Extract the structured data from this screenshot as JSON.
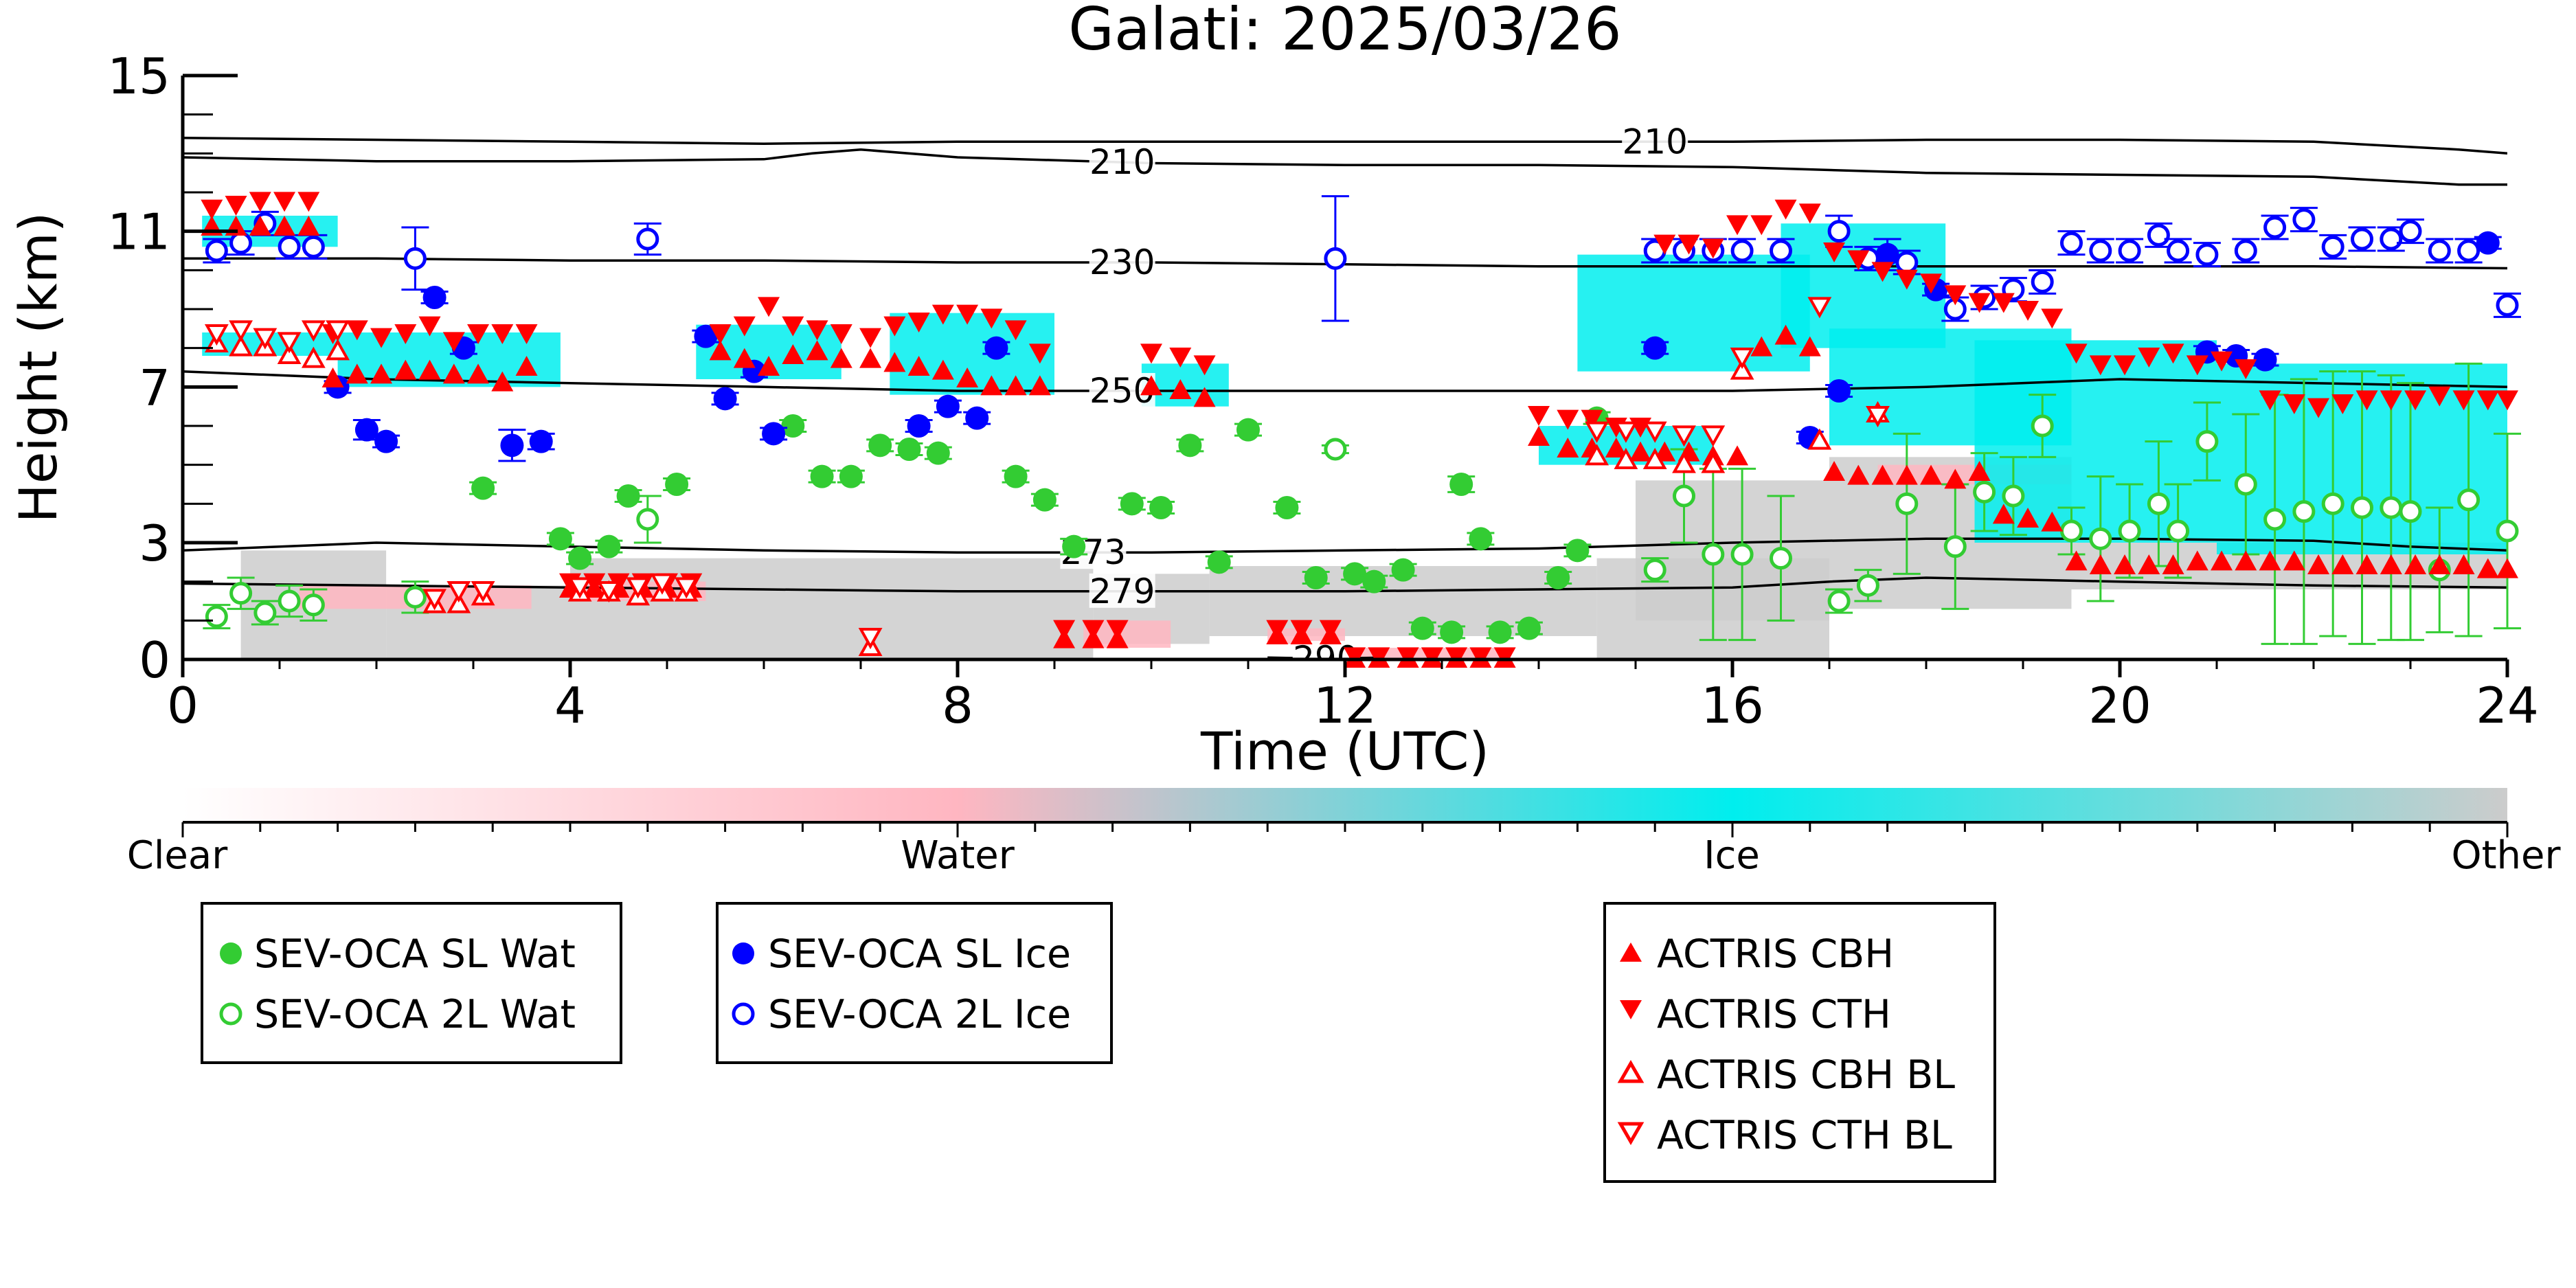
{
  "chart_data": {
    "type": "scatter",
    "title": "Galati: 2025/03/26",
    "xlabel": "Time (UTC)",
    "ylabel": "Height (km)",
    "xlim": [
      0,
      24
    ],
    "ylim": [
      0,
      15
    ],
    "xticks": [
      0,
      4,
      8,
      12,
      16,
      20,
      24
    ],
    "yticks": [
      0,
      3,
      7,
      11,
      15
    ],
    "grid": false,
    "colorbar": {
      "labels": [
        "Clear",
        "Water",
        "Ice",
        "Other"
      ],
      "colors": [
        "#ffffff",
        "#ffb6c1",
        "#00eeee",
        "#cccccc"
      ]
    },
    "contours": [
      {
        "label": "210",
        "x": [
          0,
          2,
          4,
          6,
          8,
          10,
          12,
          14,
          16,
          18,
          20,
          22,
          23.5,
          24
        ],
        "y": [
          13.4,
          13.35,
          13.3,
          13.25,
          13.3,
          13.3,
          13.3,
          13.3,
          13.3,
          13.35,
          13.35,
          13.3,
          13.1,
          13.0
        ]
      },
      {
        "label": "210",
        "x": [
          0,
          2,
          4,
          6,
          6.5,
          7,
          8,
          10,
          12,
          14,
          16,
          18,
          20,
          22,
          23.5,
          24
        ],
        "y": [
          12.9,
          12.8,
          12.8,
          12.85,
          13.0,
          13.1,
          12.9,
          12.75,
          12.7,
          12.7,
          12.65,
          12.5,
          12.45,
          12.4,
          12.2,
          12.2
        ]
      },
      {
        "label": "230",
        "x": [
          0,
          2,
          4,
          6,
          8,
          10,
          12,
          14,
          16,
          18,
          20,
          22,
          24
        ],
        "y": [
          10.3,
          10.3,
          10.25,
          10.25,
          10.2,
          10.2,
          10.15,
          10.1,
          10.1,
          10.1,
          10.1,
          10.1,
          10.05
        ]
      },
      {
        "label": "250",
        "x": [
          0,
          2,
          4,
          6,
          8,
          10,
          12,
          14,
          16,
          18,
          20,
          22,
          24
        ],
        "y": [
          7.4,
          7.2,
          7.1,
          7.0,
          6.9,
          6.9,
          6.9,
          6.9,
          6.9,
          7.0,
          7.2,
          7.1,
          7.0
        ]
      },
      {
        "label": "273",
        "x": [
          0,
          1,
          2,
          4,
          6,
          8,
          9,
          10,
          12,
          14,
          16,
          18,
          20,
          22,
          23,
          24
        ],
        "y": [
          2.8,
          2.9,
          3.0,
          2.9,
          2.8,
          2.75,
          2.75,
          2.75,
          2.8,
          2.85,
          3.0,
          3.1,
          3.1,
          3.05,
          2.9,
          2.8
        ]
      },
      {
        "label": "279",
        "x": [
          0,
          2,
          4,
          6,
          8,
          10,
          12,
          14,
          16,
          17,
          18,
          20,
          22,
          24
        ],
        "y": [
          1.95,
          1.9,
          1.85,
          1.8,
          1.75,
          1.75,
          1.75,
          1.8,
          1.85,
          2.0,
          2.1,
          2.0,
          1.9,
          1.85
        ]
      },
      {
        "label": "290",
        "x": [
          11.2,
          11.8,
          12.4
        ],
        "y": [
          0.05,
          0.02,
          0.05
        ]
      }
    ],
    "series": [
      {
        "name": "SEV-OCA SL Wat",
        "marker": "circle-filled",
        "color": "#33cc33",
        "x": [
          3.1,
          3.9,
          4.1,
          4.4,
          4.6,
          5.1,
          6.3,
          6.6,
          6.9,
          7.2,
          7.5,
          7.8,
          8.6,
          8.9,
          9.2,
          9.8,
          10.1,
          10.4,
          10.7,
          11.0,
          11.4,
          11.7,
          12.1,
          12.3,
          12.6,
          12.8,
          13.1,
          13.2,
          13.4,
          13.6,
          13.9,
          14.2,
          14.4,
          14.6
        ],
        "y": [
          4.4,
          3.1,
          2.6,
          2.9,
          4.2,
          4.5,
          6.0,
          4.7,
          4.7,
          5.5,
          5.4,
          5.3,
          4.7,
          4.1,
          2.9,
          4.0,
          3.9,
          5.5,
          2.5,
          5.9,
          3.9,
          2.1,
          2.2,
          2.0,
          2.3,
          0.8,
          0.7,
          4.5,
          3.1,
          0.7,
          0.8,
          2.1,
          2.8,
          6.2
        ],
        "yerr": [
          0.15,
          0.15,
          0.15,
          0.15,
          0.15,
          0.15,
          0.15,
          0.15,
          0.15,
          0.15,
          0.15,
          0.15,
          0.15,
          0.15,
          0.2,
          0.15,
          0.15,
          0.15,
          0.15,
          0.15,
          0.15,
          0.15,
          0.15,
          0.15,
          0.15,
          0.15,
          0.15,
          0.2,
          0.15,
          0.15,
          0.15,
          0.15,
          0.15,
          0.15
        ]
      },
      {
        "name": "SEV-OCA 2L Wat",
        "marker": "circle-open",
        "color": "#33cc33",
        "x": [
          0.35,
          0.6,
          0.85,
          1.1,
          1.35,
          2.4,
          4.8,
          11.9,
          15.2,
          15.5,
          15.8,
          16.1,
          16.5,
          17.1,
          17.4,
          17.8,
          18.3,
          18.6,
          18.9,
          19.2,
          19.5,
          19.8,
          20.1,
          20.4,
          20.6,
          20.9,
          21.3,
          21.6,
          21.9,
          22.2,
          22.5,
          22.8,
          23.0,
          23.3,
          23.6,
          24.0
        ],
        "y": [
          1.1,
          1.7,
          1.2,
          1.5,
          1.4,
          1.6,
          3.6,
          5.4,
          2.3,
          4.2,
          2.7,
          2.7,
          2.6,
          1.5,
          1.9,
          4.0,
          2.9,
          4.3,
          4.2,
          6.0,
          3.3,
          3.1,
          3.3,
          4.0,
          3.3,
          5.6,
          4.5,
          3.6,
          3.8,
          4.0,
          3.9,
          3.9,
          3.8,
          2.3,
          4.1,
          3.3
        ],
        "yerr": [
          0.3,
          0.4,
          0.3,
          0.4,
          0.4,
          0.4,
          0.6,
          0.1,
          0.3,
          1.2,
          2.2,
          2.2,
          1.6,
          0.3,
          0.4,
          1.8,
          1.6,
          1.0,
          1.0,
          0.8,
          0.6,
          1.6,
          1.2,
          1.6,
          1.2,
          1.0,
          1.8,
          3.2,
          3.4,
          3.4,
          3.5,
          3.4,
          3.3,
          1.6,
          3.5,
          2.5
        ]
      },
      {
        "name": "SEV-OCA SL Ice",
        "marker": "circle-filled",
        "color": "#0000ff",
        "x": [
          1.6,
          1.9,
          2.1,
          2.6,
          2.9,
          3.4,
          3.7,
          5.4,
          5.6,
          5.9,
          6.1,
          7.6,
          7.9,
          8.2,
          8.4,
          15.2,
          16.8,
          17.1,
          17.6,
          18.1,
          20.9,
          21.2,
          21.5,
          23.8
        ],
        "y": [
          7.0,
          5.9,
          5.6,
          9.3,
          8.0,
          5.5,
          5.6,
          8.3,
          6.7,
          7.4,
          5.8,
          6.0,
          6.5,
          6.2,
          8.0,
          8.0,
          5.7,
          6.9,
          10.4,
          9.5,
          7.9,
          7.8,
          7.7,
          10.7
        ],
        "yerr": [
          0.15,
          0.25,
          0.15,
          0.15,
          0.15,
          0.4,
          0.2,
          0.15,
          0.15,
          0.15,
          0.15,
          0.15,
          0.15,
          0.15,
          0.15,
          0.15,
          0.15,
          0.15,
          0.4,
          0.15,
          0.15,
          0.15,
          0.15,
          0.15
        ]
      },
      {
        "name": "SEV-OCA 2L Ice",
        "marker": "circle-open",
        "color": "#0000ff",
        "x": [
          0.35,
          0.6,
          0.85,
          1.1,
          1.35,
          2.4,
          4.8,
          11.9,
          15.2,
          15.5,
          15.8,
          16.1,
          16.5,
          17.1,
          17.4,
          17.8,
          18.3,
          18.6,
          18.9,
          19.2,
          19.5,
          19.8,
          20.1,
          20.4,
          20.6,
          20.9,
          21.3,
          21.6,
          21.9,
          22.2,
          22.5,
          22.8,
          23.0,
          23.3,
          23.6,
          24.0
        ],
        "y": [
          10.5,
          10.7,
          11.2,
          10.6,
          10.6,
          10.3,
          10.8,
          10.3,
          10.5,
          10.5,
          10.5,
          10.5,
          10.5,
          11.0,
          10.3,
          10.2,
          9.0,
          9.3,
          9.5,
          9.7,
          10.7,
          10.5,
          10.5,
          10.9,
          10.5,
          10.4,
          10.5,
          11.1,
          11.3,
          10.6,
          10.8,
          10.8,
          11.0,
          10.5,
          10.5,
          9.1
        ],
        "yerr": [
          0.3,
          0.3,
          0.3,
          0.3,
          0.3,
          0.8,
          0.4,
          1.6,
          0.3,
          0.3,
          0.3,
          0.3,
          0.3,
          0.4,
          0.3,
          0.3,
          0.3,
          0.3,
          0.3,
          0.3,
          0.3,
          0.3,
          0.3,
          0.3,
          0.3,
          0.3,
          0.3,
          0.3,
          0.3,
          0.3,
          0.3,
          0.3,
          0.3,
          0.3,
          0.3,
          0.3
        ]
      },
      {
        "name": "ACTRIS CBH",
        "marker": "triangle-up-filled",
        "color": "#ff0000",
        "x": [
          0.3,
          0.55,
          0.8,
          1.05,
          1.3,
          1.55,
          1.8,
          2.05,
          2.3,
          2.55,
          2.8,
          3.05,
          3.3,
          3.55,
          4.0,
          4.25,
          4.5,
          4.75,
          5.0,
          5.25,
          5.55,
          5.8,
          6.05,
          6.3,
          6.55,
          6.8,
          7.1,
          7.35,
          7.6,
          7.85,
          8.1,
          8.35,
          8.6,
          8.85,
          9.1,
          9.4,
          9.65,
          10.0,
          10.3,
          10.55,
          11.3,
          11.55,
          11.85,
          12.1,
          12.35,
          12.65,
          12.9,
          13.15,
          13.4,
          13.65,
          14.0,
          14.3,
          14.55,
          14.8,
          15.05,
          15.3,
          15.55,
          15.8,
          16.05,
          16.3,
          16.55,
          16.8,
          17.05,
          17.3,
          17.55,
          17.8,
          18.05,
          18.3,
          18.55,
          18.8,
          19.05,
          19.3,
          19.55,
          19.8,
          20.05,
          20.3,
          20.55,
          20.8,
          21.05,
          21.3,
          21.55,
          21.8,
          22.05,
          22.3,
          22.55,
          22.8,
          23.05,
          23.3,
          23.55,
          23.8,
          24.0
        ],
        "y": [
          11.1,
          11.1,
          11.1,
          11.1,
          11.1,
          7.2,
          7.3,
          7.3,
          7.4,
          7.4,
          7.3,
          7.3,
          7.1,
          7.5,
          1.8,
          1.8,
          1.8,
          1.8,
          1.8,
          1.8,
          7.9,
          7.7,
          7.5,
          7.8,
          7.9,
          7.7,
          7.7,
          7.6,
          7.5,
          7.4,
          7.2,
          7.0,
          7.0,
          7.0,
          0.5,
          0.5,
          0.5,
          7.0,
          6.9,
          6.7,
          0.6,
          0.6,
          0.6,
          0.0,
          0.0,
          0.0,
          0.0,
          0.0,
          0.0,
          0.0,
          5.7,
          5.4,
          5.4,
          5.4,
          5.3,
          5.3,
          5.3,
          5.2,
          5.2,
          8.0,
          8.3,
          8.0,
          4.8,
          4.7,
          4.7,
          4.7,
          4.7,
          4.6,
          4.8,
          3.7,
          3.6,
          3.5,
          2.5,
          2.4,
          2.4,
          2.4,
          2.4,
          2.5,
          2.5,
          2.5,
          2.5,
          2.5,
          2.4,
          2.4,
          2.4,
          2.4,
          2.4,
          2.4,
          2.4,
          2.3,
          2.3
        ]
      },
      {
        "name": "ACTRIS CTH",
        "marker": "triangle-down-filled",
        "color": "#ff0000",
        "x": [
          0.3,
          0.55,
          0.8,
          1.05,
          1.3,
          1.55,
          1.8,
          2.05,
          2.3,
          2.55,
          2.8,
          3.05,
          3.3,
          3.55,
          4.0,
          4.25,
          4.5,
          4.75,
          5.0,
          5.25,
          5.55,
          5.8,
          6.05,
          6.3,
          6.55,
          6.8,
          7.1,
          7.35,
          7.6,
          7.85,
          8.1,
          8.35,
          8.6,
          8.85,
          9.1,
          9.4,
          9.65,
          10.0,
          10.3,
          10.55,
          11.3,
          11.55,
          11.85,
          12.1,
          12.35,
          12.65,
          12.9,
          13.15,
          13.4,
          13.65,
          14.0,
          14.3,
          14.55,
          14.8,
          15.05,
          15.3,
          15.55,
          15.8,
          16.05,
          16.3,
          16.55,
          16.8,
          17.05,
          17.3,
          17.55,
          17.8,
          18.05,
          18.3,
          18.55,
          18.8,
          19.05,
          19.3,
          19.55,
          19.8,
          20.05,
          20.3,
          20.55,
          20.8,
          21.05,
          21.3,
          21.55,
          21.8,
          22.05,
          22.3,
          22.55,
          22.8,
          23.05,
          23.3,
          23.55,
          23.8,
          24.0
        ],
        "y": [
          11.6,
          11.7,
          11.8,
          11.8,
          11.8,
          8.4,
          8.5,
          8.3,
          8.4,
          8.6,
          8.2,
          8.4,
          8.4,
          8.4,
          2.0,
          2.0,
          2.0,
          2.0,
          2.0,
          2.0,
          8.4,
          8.6,
          9.1,
          8.6,
          8.5,
          8.4,
          8.3,
          8.6,
          8.7,
          8.9,
          8.9,
          8.8,
          8.5,
          7.9,
          0.8,
          0.8,
          0.8,
          7.9,
          7.8,
          7.6,
          0.8,
          0.8,
          0.8,
          0.1,
          0.1,
          0.1,
          0.1,
          0.1,
          0.1,
          0.1,
          6.3,
          6.2,
          6.2,
          6.0,
          6.0,
          10.7,
          10.7,
          10.6,
          11.2,
          11.2,
          11.6,
          11.5,
          10.5,
          10.3,
          10.0,
          9.8,
          9.7,
          9.4,
          9.2,
          9.2,
          9.0,
          8.8,
          7.9,
          7.6,
          7.6,
          7.8,
          7.9,
          7.6,
          7.7,
          7.5,
          6.7,
          6.6,
          6.5,
          6.6,
          6.7,
          6.7,
          6.7,
          6.8,
          6.7,
          6.7,
          6.7
        ]
      },
      {
        "name": "ACTRIS CBH BL",
        "marker": "triangle-up-open",
        "color": "#ff0000",
        "x": [
          0.35,
          0.6,
          0.85,
          1.1,
          1.35,
          1.6,
          2.6,
          2.85,
          3.1,
          4.1,
          4.4,
          4.7,
          4.95,
          5.2,
          7.1,
          14.6,
          14.9,
          15.2,
          15.5,
          15.8,
          16.1,
          16.9,
          17.5
        ],
        "y": [
          8.1,
          8.0,
          8.0,
          7.8,
          7.7,
          7.9,
          1.4,
          1.4,
          1.6,
          1.7,
          1.7,
          1.6,
          1.7,
          1.7,
          0.3,
          5.2,
          5.1,
          5.1,
          5.0,
          5.0,
          7.4,
          5.6,
          6.3
        ],
        "yerr": []
      },
      {
        "name": "ACTRIS CTH BL",
        "marker": "triangle-down-open",
        "color": "#ff0000",
        "x": [
          0.35,
          0.6,
          0.85,
          1.1,
          1.35,
          1.6,
          2.6,
          2.85,
          3.1,
          4.1,
          4.4,
          4.7,
          4.95,
          5.2,
          7.1,
          14.6,
          14.9,
          15.2,
          15.5,
          15.8,
          16.1,
          16.9,
          17.5
        ],
        "y": [
          8.4,
          8.5,
          8.3,
          8.2,
          8.5,
          8.5,
          1.6,
          1.8,
          1.8,
          1.9,
          1.8,
          1.9,
          2.0,
          1.9,
          0.6,
          5.9,
          5.9,
          5.9,
          5.8,
          5.8,
          7.8,
          9.1,
          6.3
        ],
        "yerr": []
      }
    ]
  }
}
